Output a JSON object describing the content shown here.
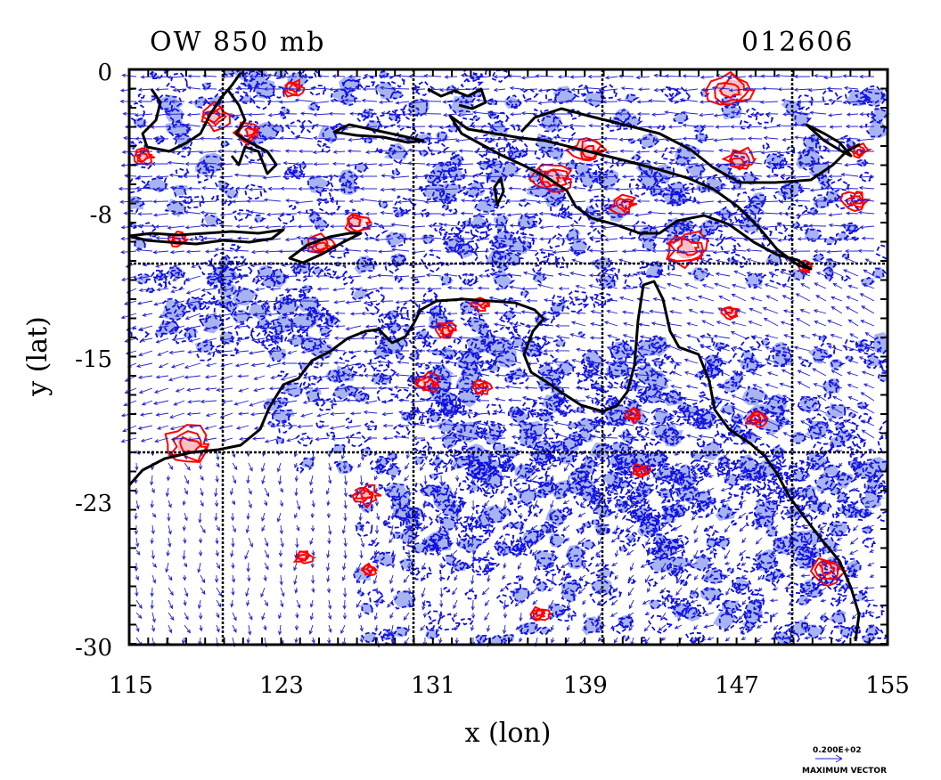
{
  "title_left": "OW 850 mb",
  "title_right": "012606",
  "x_axis_label": "x (lon)",
  "y_axis_label": "y (lat)",
  "x_ticks": [
    "115",
    "123",
    "131",
    "139",
    "147",
    "155"
  ],
  "y_ticks": [
    "0",
    "-8",
    "-15",
    "-23",
    "-30"
  ],
  "legend": {
    "max_vector_value": "0.200E+02",
    "max_vector_label": "MAXIMUM VECTOR"
  },
  "colors": {
    "positive_contour": "#ff0000",
    "positive_fill": "#f7c0c8",
    "negative_contour": "#1010e0",
    "negative_fill": "#a8b4f0",
    "vectors": "#2020d0",
    "coastline": "#000000",
    "grid": "#000000"
  }
}
